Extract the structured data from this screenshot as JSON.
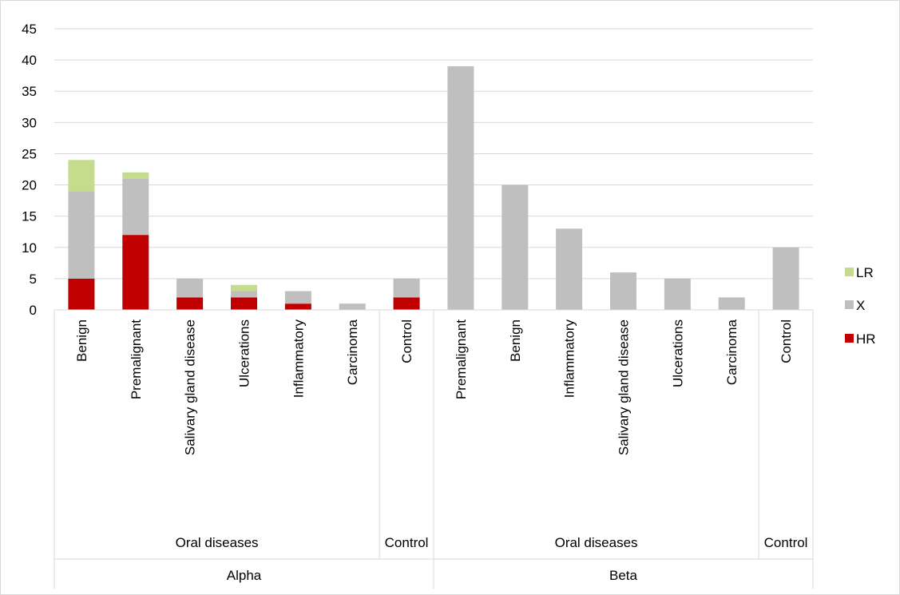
{
  "chart_data": {
    "type": "bar",
    "stacked": true,
    "ylim": [
      0,
      45
    ],
    "yticks": [
      0,
      5,
      10,
      15,
      20,
      25,
      30,
      35,
      40,
      45
    ],
    "grid": true,
    "legend_position": "right",
    "title": "",
    "xlabel": "",
    "ylabel": "",
    "colors": {
      "HR": "#c00000",
      "X": "#bfbfbf",
      "LR": "#c4dc8c"
    },
    "categories": [
      {
        "label": "Benign",
        "group": "Oral diseases",
        "super": "Alpha"
      },
      {
        "label": "Premalignant",
        "group": "Oral diseases",
        "super": "Alpha"
      },
      {
        "label": "Salivary gland disease",
        "group": "Oral diseases",
        "super": "Alpha"
      },
      {
        "label": "Ulcerations",
        "group": "Oral diseases",
        "super": "Alpha"
      },
      {
        "label": "Inflammatory",
        "group": "Oral diseases",
        "super": "Alpha"
      },
      {
        "label": "Carcinoma",
        "group": "Oral diseases",
        "super": "Alpha"
      },
      {
        "label": "Control",
        "group": "Control",
        "super": "Alpha"
      },
      {
        "label": "Premalignant",
        "group": "Oral diseases",
        "super": "Beta"
      },
      {
        "label": "Benign",
        "group": "Oral diseases",
        "super": "Beta"
      },
      {
        "label": "Inflammatory",
        "group": "Oral diseases",
        "super": "Beta"
      },
      {
        "label": "Salivary gland disease",
        "group": "Oral diseases",
        "super": "Beta"
      },
      {
        "label": "Ulcerations",
        "group": "Oral diseases",
        "super": "Beta"
      },
      {
        "label": "Carcinoma",
        "group": "Oral diseases",
        "super": "Beta"
      },
      {
        "label": "Control",
        "group": "Control",
        "super": "Beta"
      }
    ],
    "groups": [
      {
        "label": "Oral diseases",
        "super": "Alpha",
        "span": [
          0,
          5
        ]
      },
      {
        "label": "Control",
        "super": "Alpha",
        "span": [
          6,
          6
        ]
      },
      {
        "label": "Oral diseases",
        "super": "Beta",
        "span": [
          7,
          12
        ]
      },
      {
        "label": "Control",
        "super": "Beta",
        "span": [
          13,
          13
        ]
      }
    ],
    "supergroups": [
      {
        "label": "Alpha",
        "span": [
          0,
          6
        ]
      },
      {
        "label": "Beta",
        "span": [
          7,
          13
        ]
      }
    ],
    "series": [
      {
        "name": "HR",
        "values": [
          5,
          12,
          2,
          2,
          1,
          0,
          2,
          0,
          0,
          0,
          0,
          0,
          0,
          0
        ]
      },
      {
        "name": "X",
        "values": [
          14,
          9,
          3,
          1,
          2,
          1,
          3,
          39,
          20,
          13,
          6,
          5,
          2,
          10
        ]
      },
      {
        "name": "LR",
        "values": [
          5,
          1,
          0,
          1,
          0,
          0,
          0,
          0,
          0,
          0,
          0,
          0,
          0,
          0
        ]
      }
    ],
    "legend_order": [
      "LR",
      "X",
      "HR"
    ]
  }
}
